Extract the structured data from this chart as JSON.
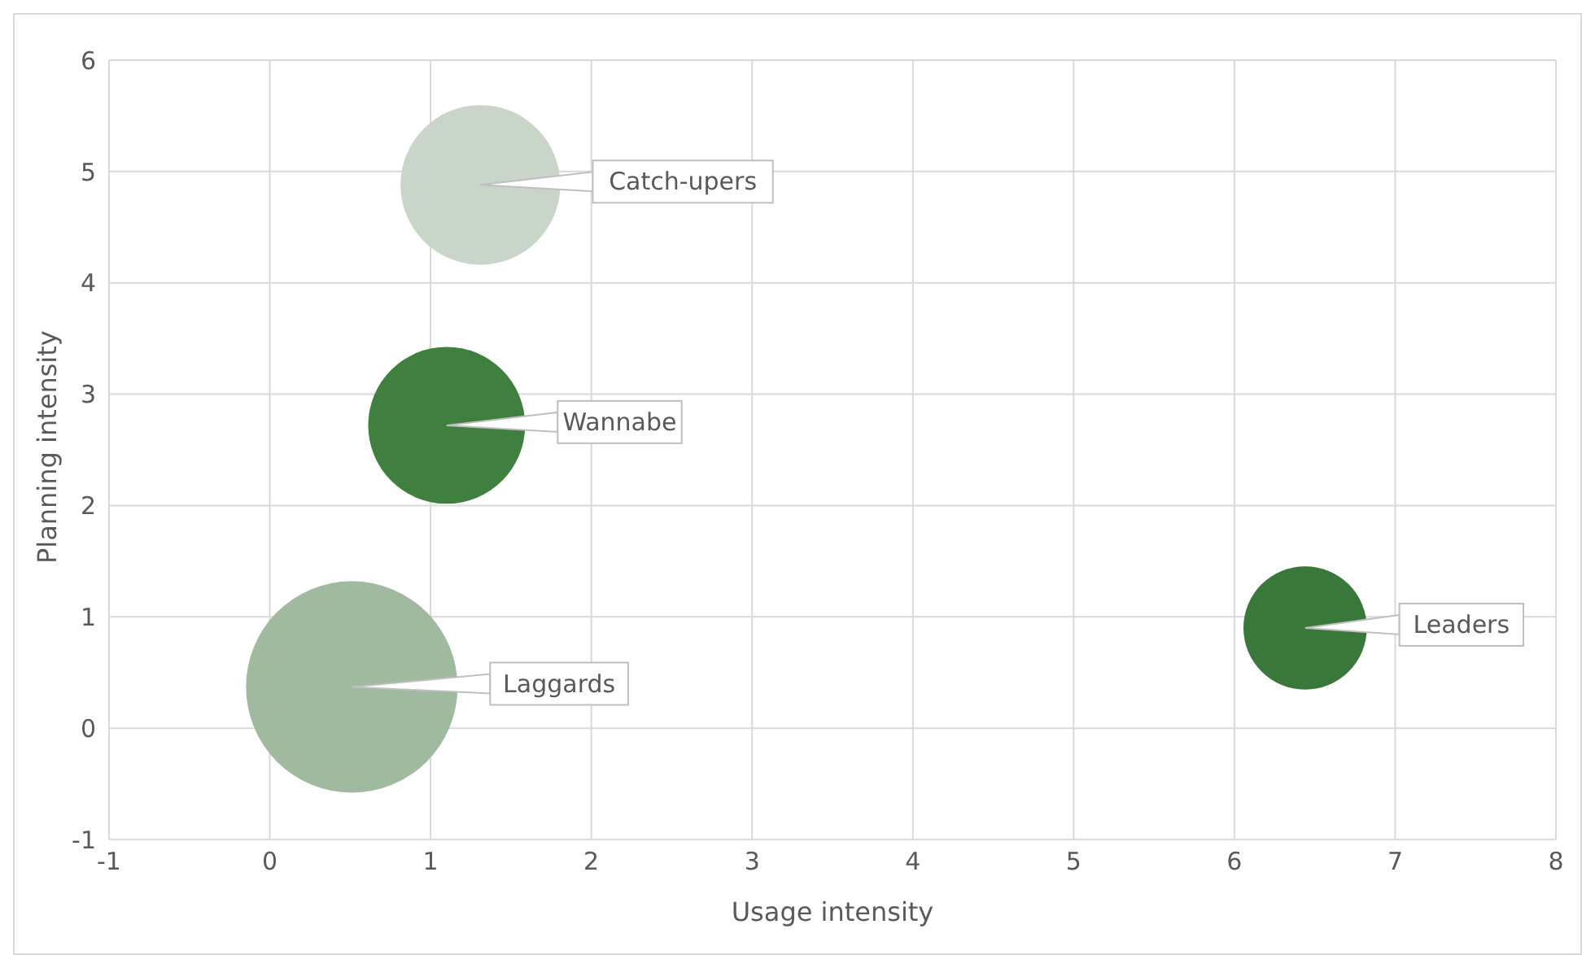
{
  "chart_data": {
    "type": "bubble",
    "xlabel": "Usage intensity",
    "ylabel": "Planning intensity",
    "xlim": [
      -1,
      8
    ],
    "xticks": [
      -1,
      0,
      1,
      2,
      3,
      4,
      5,
      6,
      7,
      8
    ],
    "ylim": [
      -1,
      6
    ],
    "yticks": [
      -1,
      0,
      1,
      2,
      3,
      4,
      5,
      6
    ],
    "grid": true,
    "legend": false,
    "series": [
      {
        "name": "Catch-upers",
        "color": "#c9d5c9",
        "x": [
          1.31
        ],
        "values": [
          4.88
        ],
        "sizes": [
          0.57
        ]
      },
      {
        "name": "Wannabe",
        "color": "#3f7f3f",
        "x": [
          1.1
        ],
        "values": [
          2.72
        ],
        "sizes": [
          0.55
        ]
      },
      {
        "name": "Laggards",
        "color": "#9fba9f",
        "x": [
          0.51
        ],
        "values": [
          0.37
        ],
        "sizes": [
          1
        ]
      },
      {
        "name": "Leaders",
        "color": "#3a773a",
        "x": [
          6.44
        ],
        "values": [
          0.9
        ],
        "sizes": [
          0.34
        ]
      }
    ]
  }
}
